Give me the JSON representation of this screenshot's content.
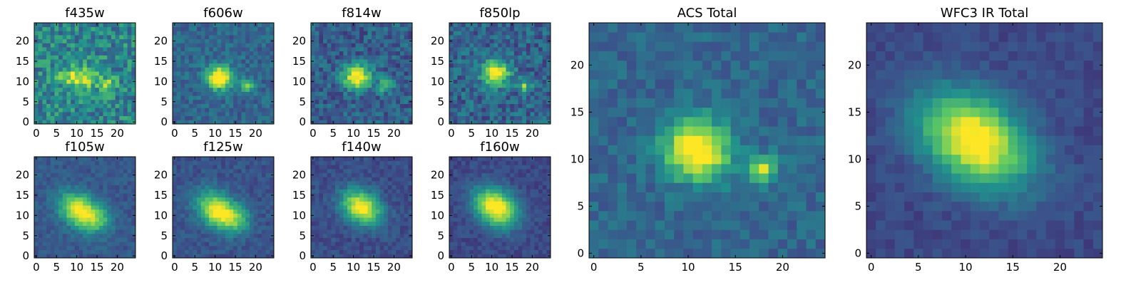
{
  "figure": {
    "colormap": "viridis",
    "colormap_stops": [
      "#440154",
      "#3b528b",
      "#21908d",
      "#5dc963",
      "#fde725"
    ]
  },
  "chart_data": [
    {
      "type": "heatmap",
      "title": "f435w",
      "grid": [
        25,
        25
      ],
      "xticks": [
        0,
        5,
        10,
        15,
        20
      ],
      "yticks": [
        0,
        5,
        10,
        15,
        20
      ],
      "xlim": [
        -0.5,
        24.5
      ],
      "ylim": [
        -0.5,
        24.5
      ],
      "sources": [
        {
          "x": 11,
          "y": 11,
          "amp": 0.55,
          "sx": 3.5,
          "sy": 1.8,
          "rot": 0
        },
        {
          "x": 18,
          "y": 9,
          "amp": 0.35,
          "sx": 1.2,
          "sy": 1.2,
          "rot": 0
        }
      ],
      "background": 0.45,
      "noise": 0.38
    },
    {
      "type": "heatmap",
      "title": "f606w",
      "grid": [
        25,
        25
      ],
      "xticks": [
        0,
        5,
        10,
        15,
        20
      ],
      "yticks": [
        0,
        5,
        10,
        15,
        20
      ],
      "xlim": [
        -0.5,
        24.5
      ],
      "ylim": [
        -0.5,
        24.5
      ],
      "sources": [
        {
          "x": 11,
          "y": 11,
          "amp": 0.8,
          "sx": 2.2,
          "sy": 2.0,
          "rot": 0
        },
        {
          "x": 18,
          "y": 9,
          "amp": 0.45,
          "sx": 1.1,
          "sy": 1.1,
          "rot": 0
        }
      ],
      "background": 0.33,
      "noise": 0.22
    },
    {
      "type": "heatmap",
      "title": "f814w",
      "grid": [
        25,
        25
      ],
      "xticks": [
        0,
        5,
        10,
        15,
        20
      ],
      "yticks": [
        0,
        5,
        10,
        15,
        20
      ],
      "xlim": [
        -0.5,
        24.5
      ],
      "ylim": [
        -0.5,
        24.5
      ],
      "sources": [
        {
          "x": 11,
          "y": 11,
          "amp": 0.75,
          "sx": 2.4,
          "sy": 2.1,
          "rot": 0
        },
        {
          "x": 18,
          "y": 9,
          "amp": 0.4,
          "sx": 1.2,
          "sy": 1.2,
          "rot": 0
        }
      ],
      "background": 0.3,
      "noise": 0.28
    },
    {
      "type": "heatmap",
      "title": "f850lp",
      "grid": [
        25,
        25
      ],
      "xticks": [
        0,
        5,
        10,
        15,
        20
      ],
      "yticks": [
        0,
        5,
        10,
        15,
        20
      ],
      "xlim": [
        -0.5,
        24.5
      ],
      "ylim": [
        -0.5,
        24.5
      ],
      "sources": [
        {
          "x": 11,
          "y": 12,
          "amp": 0.75,
          "sx": 2.3,
          "sy": 2.1,
          "rot": 0
        },
        {
          "x": 18,
          "y": 9,
          "amp": 0.45,
          "sx": 1.1,
          "sy": 1.1,
          "rot": 0
        }
      ],
      "background": 0.32,
      "noise": 0.3
    },
    {
      "type": "heatmap",
      "title": "f105w",
      "grid": [
        25,
        25
      ],
      "xticks": [
        0,
        5,
        10,
        15,
        20
      ],
      "yticks": [
        0,
        5,
        10,
        15,
        20
      ],
      "xlim": [
        -0.5,
        24.5
      ],
      "ylim": [
        -0.5,
        24.5
      ],
      "sources": [
        {
          "x": 11,
          "y": 11,
          "amp": 0.8,
          "sx": 3.8,
          "sy": 2.6,
          "rot": -0.6
        },
        {
          "x": 16,
          "y": 9,
          "amp": 0.2,
          "sx": 2.0,
          "sy": 2.0,
          "rot": 0
        }
      ],
      "background": 0.28,
      "noise": 0.14
    },
    {
      "type": "heatmap",
      "title": "f125w",
      "grid": [
        25,
        25
      ],
      "xticks": [
        0,
        5,
        10,
        15,
        20
      ],
      "yticks": [
        0,
        5,
        10,
        15,
        20
      ],
      "xlim": [
        -0.5,
        24.5
      ],
      "ylim": [
        -0.5,
        24.5
      ],
      "sources": [
        {
          "x": 11,
          "y": 11,
          "amp": 0.8,
          "sx": 4.0,
          "sy": 2.7,
          "rot": -0.6
        },
        {
          "x": 16,
          "y": 9,
          "amp": 0.2,
          "sx": 2.0,
          "sy": 2.0,
          "rot": 0
        }
      ],
      "background": 0.26,
      "noise": 0.14
    },
    {
      "type": "heatmap",
      "title": "f140w",
      "grid": [
        25,
        25
      ],
      "xticks": [
        0,
        5,
        10,
        15,
        20
      ],
      "yticks": [
        0,
        5,
        10,
        15,
        20
      ],
      "xlim": [
        -0.5,
        24.5
      ],
      "ylim": [
        -0.5,
        24.5
      ],
      "sources": [
        {
          "x": 12,
          "y": 12,
          "amp": 0.8,
          "sx": 3.6,
          "sy": 2.6,
          "rot": -0.6
        }
      ],
      "background": 0.24,
      "noise": 0.14
    },
    {
      "type": "heatmap",
      "title": "f160w",
      "grid": [
        25,
        25
      ],
      "xticks": [
        0,
        5,
        10,
        15,
        20
      ],
      "yticks": [
        0,
        5,
        10,
        15,
        20
      ],
      "xlim": [
        -0.5,
        24.5
      ],
      "ylim": [
        -0.5,
        24.5
      ],
      "sources": [
        {
          "x": 11,
          "y": 12,
          "amp": 0.85,
          "sx": 4.0,
          "sy": 3.0,
          "rot": -0.6
        }
      ],
      "background": 0.22,
      "noise": 0.12
    },
    {
      "type": "heatmap",
      "title": "ACS Total",
      "grid": [
        25,
        25
      ],
      "xticks": [
        0,
        5,
        10,
        15,
        20
      ],
      "yticks": [
        0,
        5,
        10,
        15,
        20
      ],
      "xlim": [
        -0.5,
        24.5
      ],
      "ylim": [
        -0.5,
        24.5
      ],
      "sources": [
        {
          "x": 11,
          "y": 11,
          "amp": 0.8,
          "sx": 2.4,
          "sy": 2.2,
          "rot": 0
        },
        {
          "x": 18,
          "y": 9,
          "amp": 0.55,
          "sx": 1.0,
          "sy": 1.0,
          "rot": 0
        }
      ],
      "background": 0.33,
      "noise": 0.18
    },
    {
      "type": "heatmap",
      "title": "WFC3 IR Total",
      "grid": [
        25,
        25
      ],
      "xticks": [
        0,
        5,
        10,
        15,
        20
      ],
      "yticks": [
        0,
        5,
        10,
        15,
        20
      ],
      "xlim": [
        -0.5,
        24.5
      ],
      "ylim": [
        -0.5,
        24.5
      ],
      "sources": [
        {
          "x": 11,
          "y": 12,
          "amp": 0.85,
          "sx": 4.4,
          "sy": 3.0,
          "rot": -0.6
        }
      ],
      "background": 0.22,
      "noise": 0.1
    }
  ]
}
